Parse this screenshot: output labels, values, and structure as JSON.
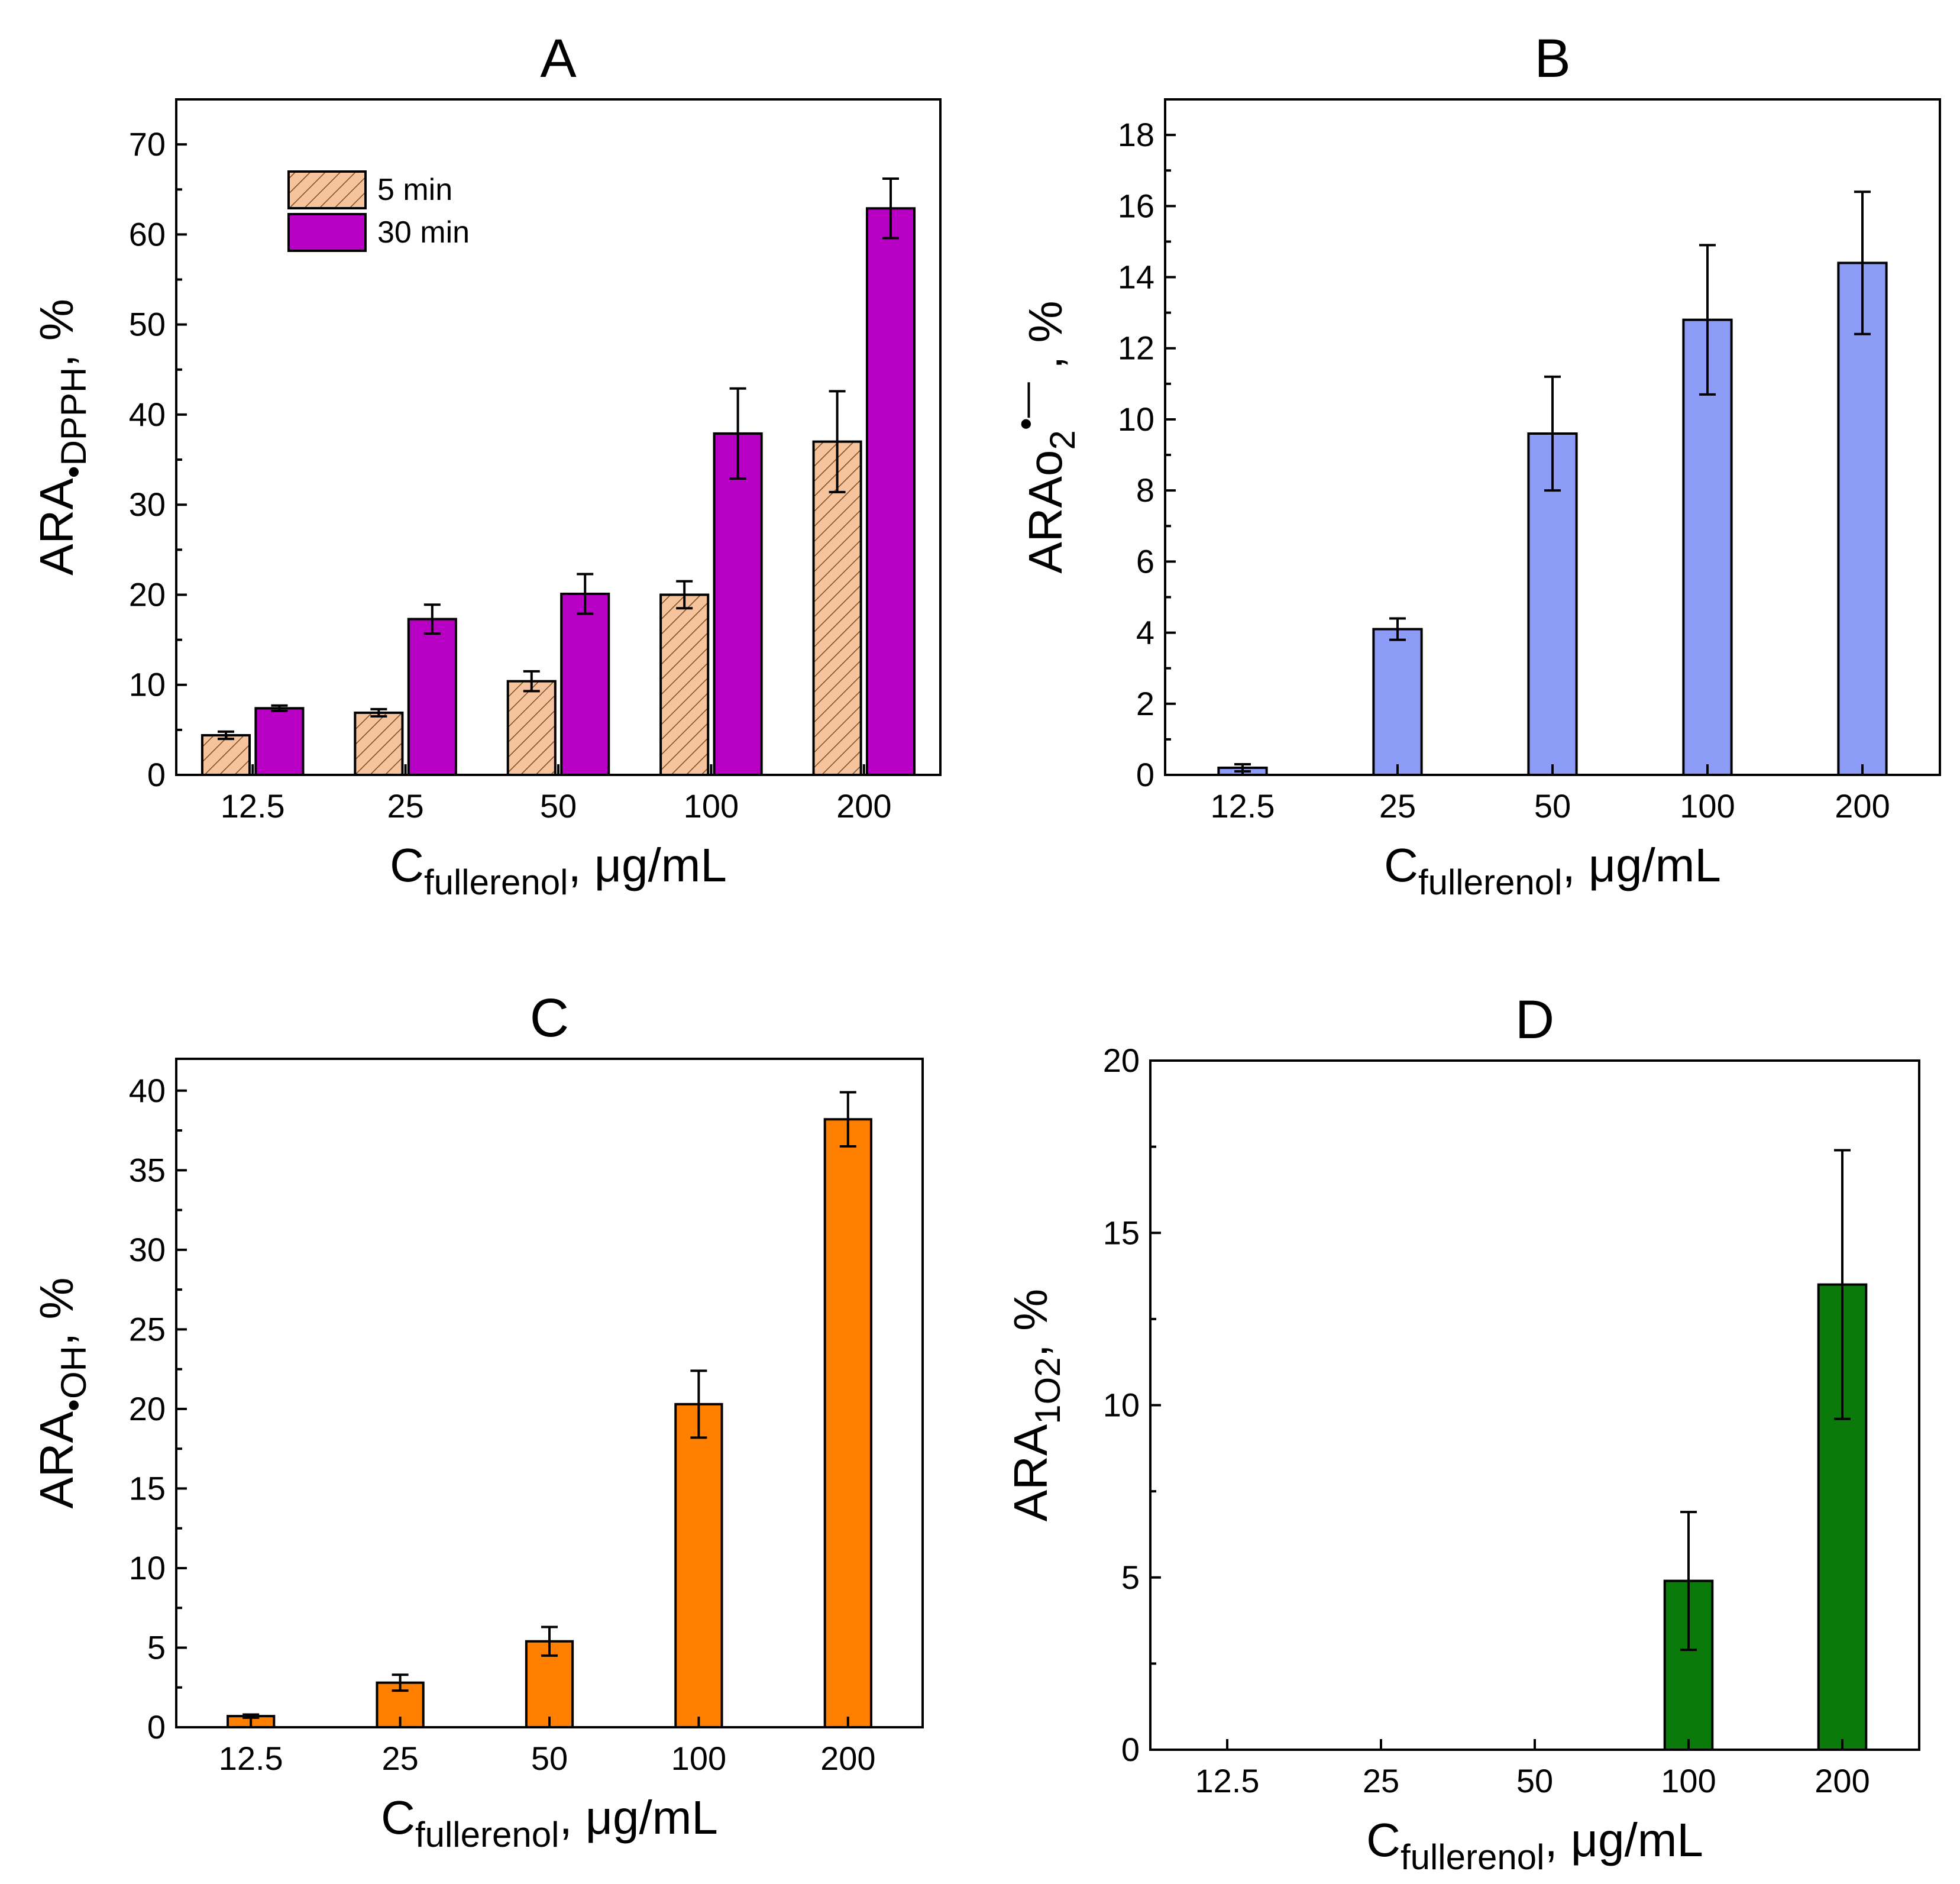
{
  "chart_data": [
    {
      "panel": "A",
      "type": "bar",
      "title": "A",
      "categories": [
        "12.5",
        "25",
        "50",
        "100",
        "200"
      ],
      "series": [
        {
          "name": "5 min",
          "values": [
            4.4,
            6.9,
            10.4,
            20.0,
            37.0
          ],
          "errors": [
            0.4,
            0.4,
            1.1,
            1.5,
            5.6
          ],
          "color": "#f5c49e",
          "pattern": "hatched"
        },
        {
          "name": "30 min",
          "values": [
            7.4,
            17.3,
            20.1,
            37.9,
            62.9
          ],
          "errors": [
            0.3,
            1.6,
            2.2,
            5.0,
            3.3
          ],
          "color": "#b800c4",
          "pattern": "solid"
        }
      ],
      "ylim": [
        0,
        75
      ],
      "yticks": [
        "0",
        "10",
        "20",
        "30",
        "40",
        "50",
        "60",
        "70"
      ],
      "xlabel": {
        "main": "C",
        "sub": "fullerenol",
        "rest": ", μg/mL"
      },
      "ylabel": {
        "main": "ARA",
        "sub": "•DPPH",
        "rest": ", %"
      },
      "legend_position": "top-left"
    },
    {
      "panel": "B",
      "type": "bar",
      "title": "B",
      "categories": [
        "12.5",
        "25",
        "50",
        "100",
        "200"
      ],
      "series": [
        {
          "name": "ARA O2•−",
          "values": [
            0.2,
            4.1,
            9.6,
            12.8,
            14.4
          ],
          "errors": [
            0.1,
            0.3,
            1.6,
            2.1,
            2.0
          ],
          "color": "#8c9cf7",
          "pattern": "solid"
        }
      ],
      "ylim": [
        0,
        19
      ],
      "yticks": [
        "0",
        "2",
        "4",
        "6",
        "8",
        "10",
        "12",
        "14",
        "16",
        "18"
      ],
      "xlabel": {
        "main": "C",
        "sub": "fullerenol",
        "rest": ", μg/mL"
      },
      "ylabel": {
        "main": "ARAo",
        "sub": "2",
        "sup": "•—",
        "rest": " , %"
      }
    },
    {
      "panel": "C",
      "type": "bar",
      "title": "C",
      "categories": [
        "12.5",
        "25",
        "50",
        "100",
        "200"
      ],
      "series": [
        {
          "name": "ARA •OH",
          "values": [
            0.7,
            2.8,
            5.4,
            20.3,
            38.2
          ],
          "errors": [
            0.1,
            0.5,
            0.9,
            2.1,
            1.7
          ],
          "color": "#ff8000",
          "pattern": "solid"
        }
      ],
      "ylim": [
        0,
        42
      ],
      "yticks": [
        "0",
        "5",
        "10",
        "15",
        "20",
        "25",
        "30",
        "35",
        "40"
      ],
      "xlabel": {
        "main": "C",
        "sub": "fullerenol",
        "rest": ", μg/mL"
      },
      "ylabel": {
        "main": "ARA",
        "sub": "•OH",
        "rest": ", %"
      }
    },
    {
      "panel": "D",
      "type": "bar",
      "title": "D",
      "categories": [
        "12.5",
        "25",
        "50",
        "100",
        "200"
      ],
      "series": [
        {
          "name": "ARA 1O2",
          "values": [
            0,
            0,
            0,
            4.9,
            13.5
          ],
          "errors": [
            0,
            0,
            0,
            2.0,
            3.9
          ],
          "color": "#0a7a0a",
          "pattern": "solid"
        }
      ],
      "ylim": [
        0,
        20
      ],
      "yticks": [
        "0",
        "5",
        "10",
        "15",
        "20"
      ],
      "xlabel": {
        "main": "C",
        "sub": "fullerenol",
        "rest": ", μg/mL"
      },
      "ylabel": {
        "main": "ARA",
        "sub": "1O2",
        "rest": ", %"
      }
    }
  ]
}
